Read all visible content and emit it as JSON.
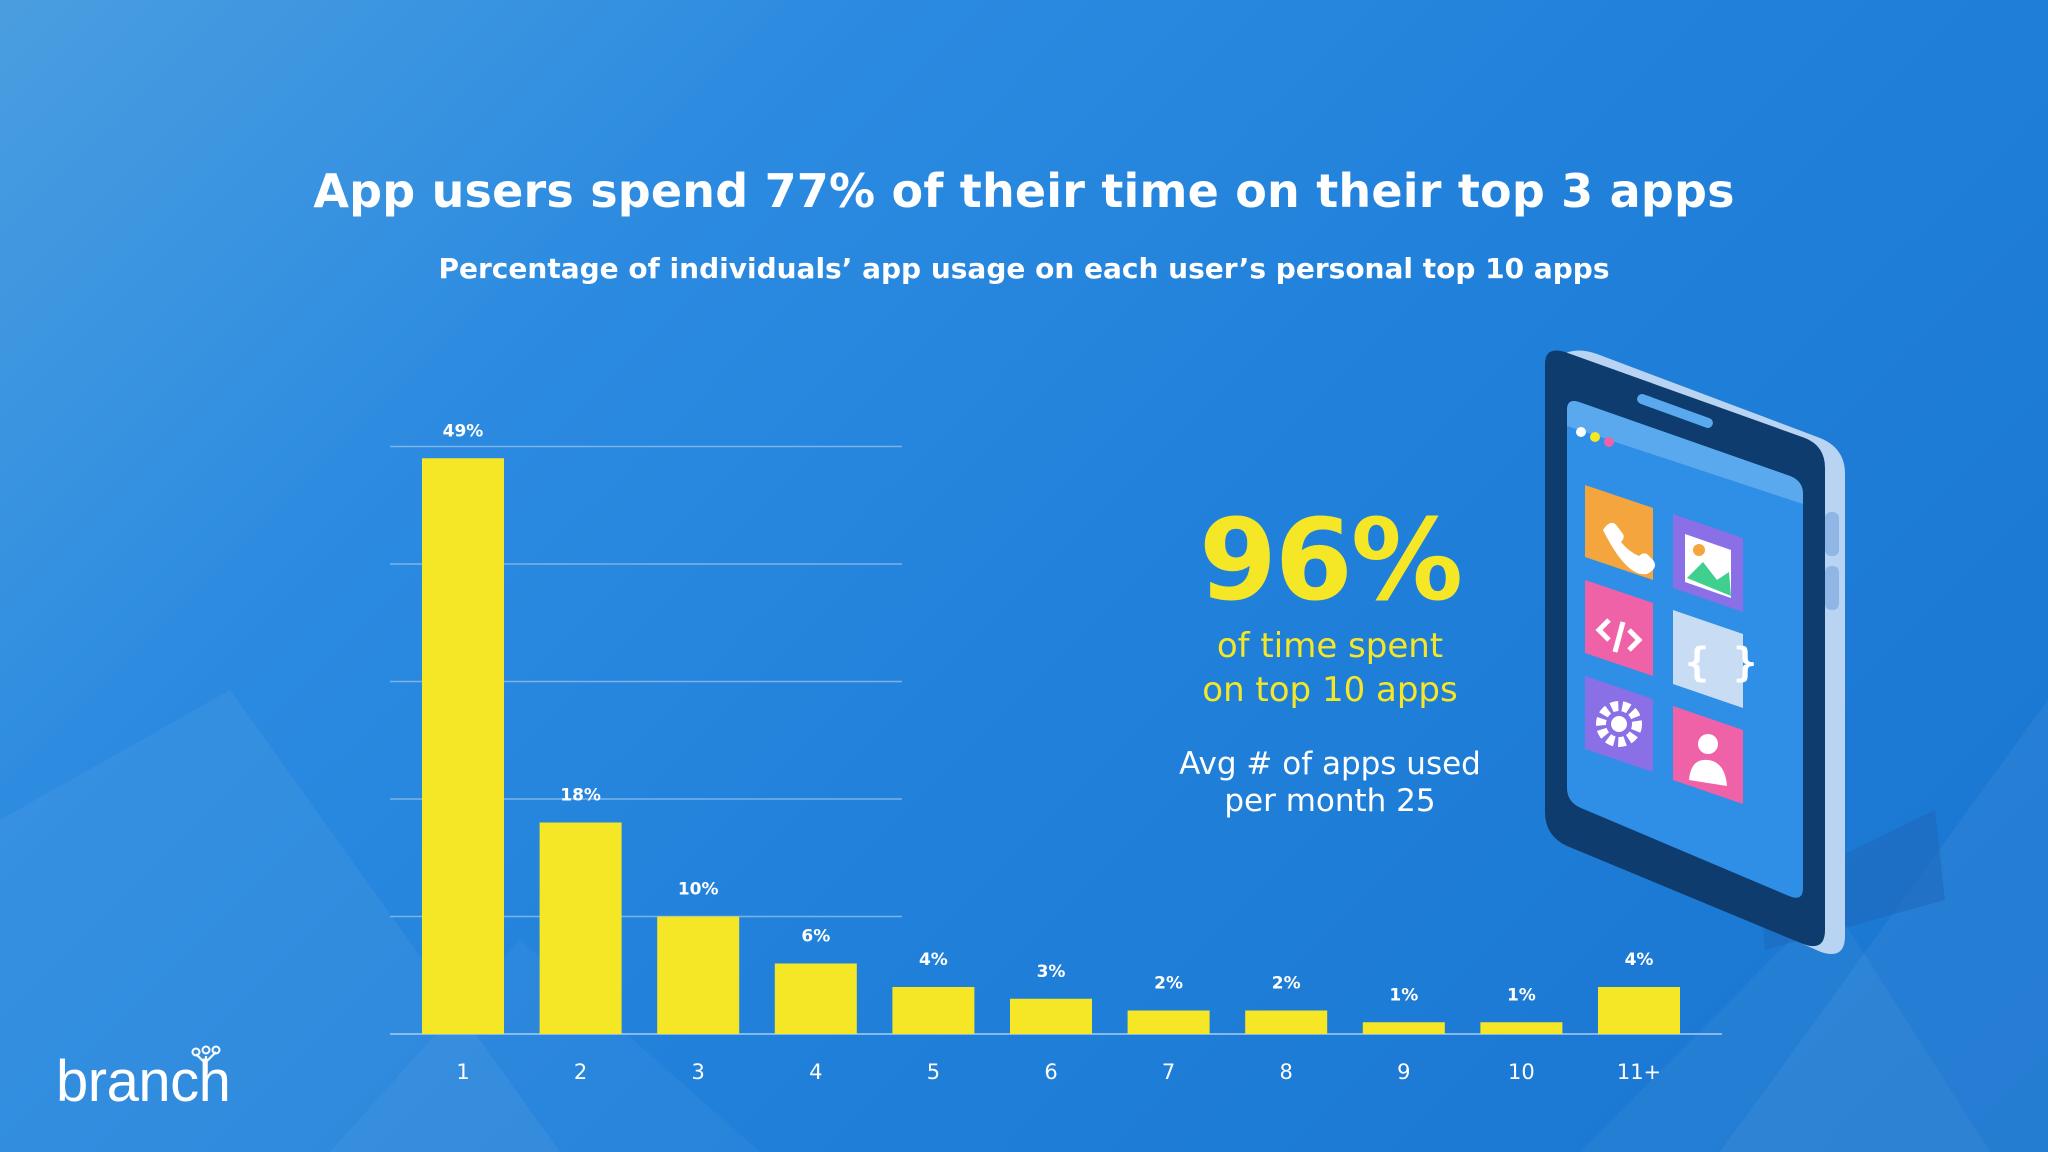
{
  "header": {
    "title": "App users spend 77% of their time on their top 3 apps",
    "subtitle": "Percentage of individuals’ app usage on each user’s personal top 10 apps"
  },
  "chart_data": {
    "type": "bar",
    "title": "App users spend 77% of their time on their top 3 apps",
    "subtitle": "Percentage of individuals’ app usage on each user’s personal top 10 apps",
    "categories": [
      "1",
      "2",
      "3",
      "4",
      "5",
      "6",
      "7",
      "8",
      "9",
      "10",
      "11+"
    ],
    "values": [
      49,
      18,
      10,
      6,
      4,
      3,
      2,
      2,
      1,
      1,
      4
    ],
    "data_labels": [
      "49%",
      "18%",
      "10%",
      "6%",
      "4%",
      "3%",
      "2%",
      "2%",
      "1%",
      "1%",
      "4%"
    ],
    "xlabel": "",
    "ylabel": "",
    "ylim": [
      0,
      52
    ],
    "grid": true,
    "legend": "none",
    "bar_color": "#f6e726"
  },
  "callout": {
    "big_value": "96%",
    "caption_line1": "of time spent",
    "caption_line2": "on top 10 apps",
    "avg_line1": "Avg # of apps used",
    "avg_line2": "per month 25"
  },
  "logo": {
    "text": "branch"
  },
  "colors": {
    "background": "#1f7fd9",
    "accent_yellow": "#f6e726",
    "text": "#ffffff"
  },
  "phone_icons": [
    "phone-icon",
    "image-icon",
    "code-icon",
    "braces-icon",
    "gear-icon",
    "user-icon"
  ]
}
